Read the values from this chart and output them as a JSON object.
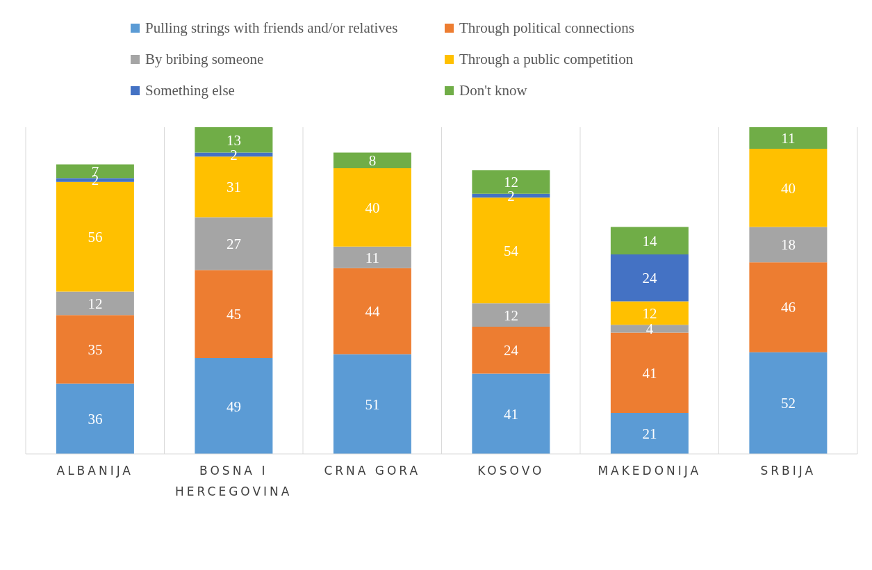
{
  "chart_data": {
    "type": "bar",
    "stacked": true,
    "data_labels": true,
    "grid": "x",
    "legend": "top",
    "categories": [
      "ALBANIJA",
      "BOSNA I HERCEGOVINA",
      "CRNA GORA",
      "KOSOVO",
      "MAKEDONIJA",
      "SRBIJA"
    ],
    "series": [
      {
        "name": "Pulling strings with friends and/or relatives",
        "color": "#5b9bd5",
        "values": [
          36,
          49,
          51,
          41,
          21,
          52
        ]
      },
      {
        "name": "Through political connections",
        "color": "#ed7d31",
        "values": [
          35,
          45,
          44,
          24,
          41,
          46
        ]
      },
      {
        "name": "By bribing someone",
        "color": "#a5a5a5",
        "values": [
          12,
          27,
          11,
          12,
          4,
          18
        ]
      },
      {
        "name": "Through a public competition",
        "color": "#ffc000",
        "values": [
          56,
          31,
          40,
          54,
          12,
          40
        ]
      },
      {
        "name": "Something else",
        "color": "#4472c4",
        "values": [
          2,
          2,
          null,
          2,
          24,
          null
        ]
      },
      {
        "name": "Don't know",
        "color": "#70ad47",
        "values": [
          7,
          13,
          8,
          12,
          14,
          11
        ]
      }
    ]
  }
}
